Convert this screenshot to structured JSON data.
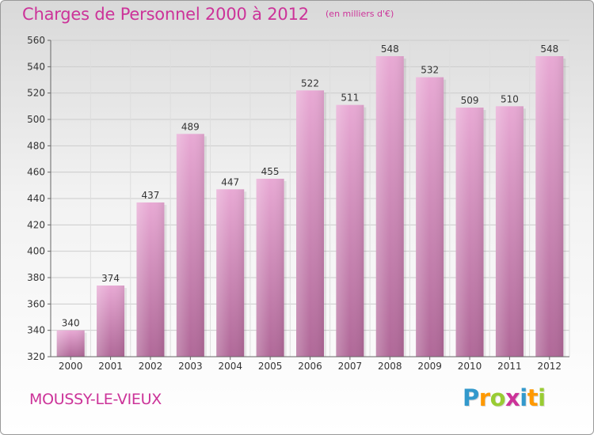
{
  "title": "Charges de Personnel 2000 à 2012",
  "subtitle": "(en milliers d'€)",
  "commune": "MOUSSY-LE-VIEUX",
  "logo": {
    "letters": [
      "P",
      "r",
      "o",
      "x",
      "i",
      "t",
      "i"
    ],
    "colors": [
      "#3399cc",
      "#ff9900",
      "#99cc33",
      "#cc3399",
      "#3399cc",
      "#ff9900",
      "#99cc33"
    ]
  },
  "chart_data": {
    "type": "bar",
    "categories": [
      "2000",
      "2001",
      "2002",
      "2003",
      "2004",
      "2005",
      "2006",
      "2007",
      "2008",
      "2009",
      "2010",
      "2011",
      "2012"
    ],
    "values": [
      340,
      374,
      437,
      489,
      447,
      455,
      522,
      511,
      548,
      532,
      509,
      510,
      548
    ],
    "ylim": [
      320,
      560
    ],
    "yticks": [
      320,
      340,
      360,
      380,
      400,
      420,
      440,
      460,
      480,
      500,
      520,
      540,
      560
    ],
    "grid": true,
    "bar_color": "#d88cbc",
    "title": "Charges de Personnel 2000 à 2012",
    "xlabel": "",
    "ylabel": ""
  }
}
